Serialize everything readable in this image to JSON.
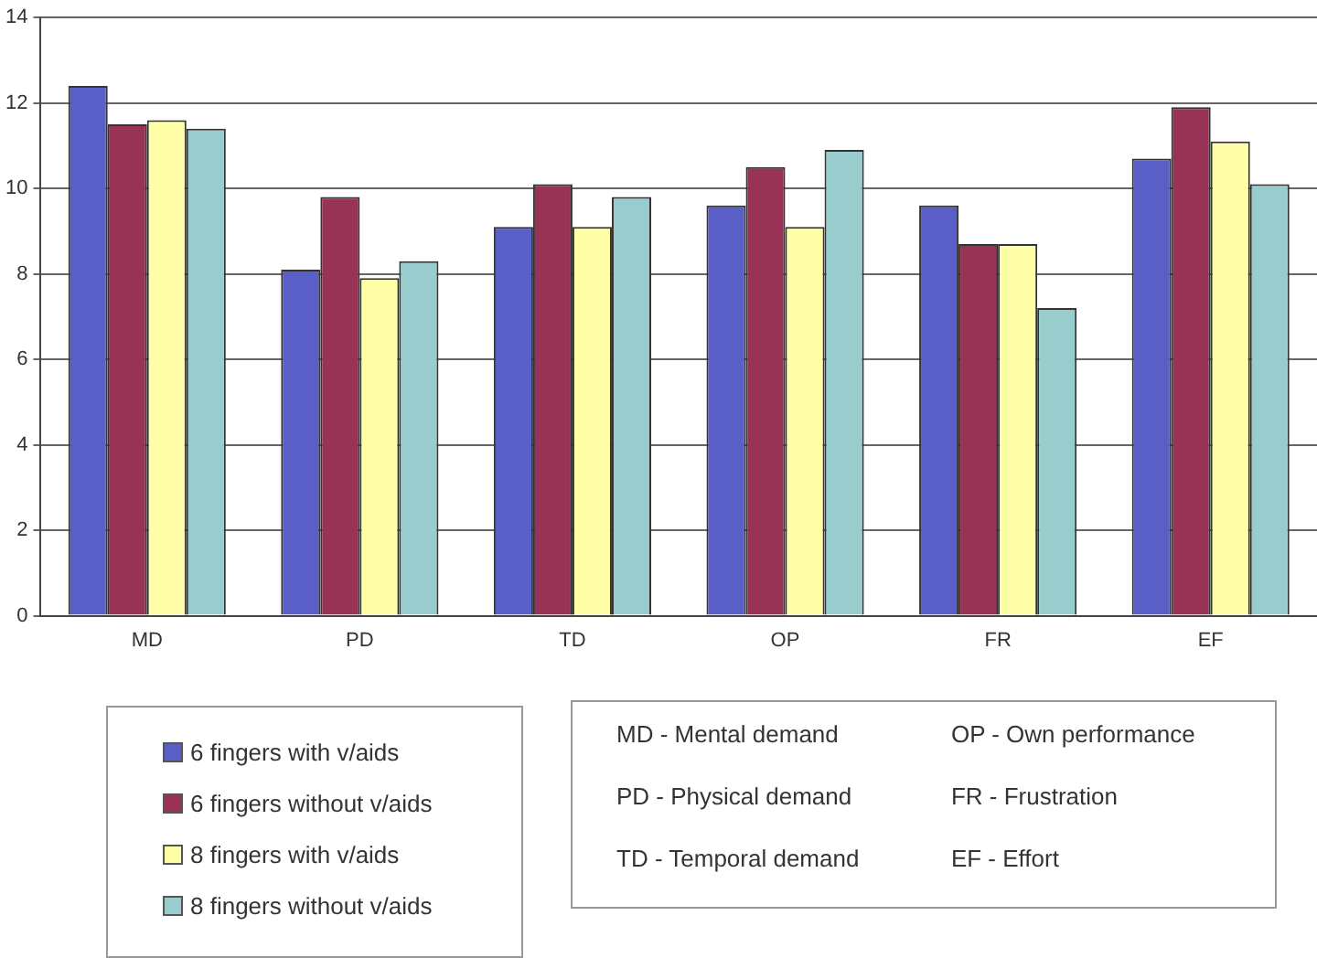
{
  "chart_data": {
    "type": "bar",
    "categories": [
      "MD",
      "PD",
      "TD",
      "OP",
      "FR",
      "EF"
    ],
    "series": [
      {
        "name": "6 fingers with v/aids",
        "color": "#5a5fc8",
        "values": [
          12.4,
          8.1,
          9.1,
          9.6,
          9.6,
          10.7
        ]
      },
      {
        "name": "6 fingers without v/aids",
        "color": "#993355",
        "values": [
          11.5,
          9.8,
          10.1,
          10.5,
          8.7,
          11.9
        ]
      },
      {
        "name": "8 fingers with v/aids",
        "color": "#ffffa8",
        "values": [
          11.6,
          7.9,
          9.1,
          9.1,
          8.7,
          11.1
        ]
      },
      {
        "name": "8 fingers without v/aids",
        "color": "#99cccc",
        "values": [
          11.4,
          8.3,
          9.8,
          10.9,
          7.2,
          10.1
        ]
      }
    ],
    "ylim": [
      0,
      14
    ],
    "yticks": [
      0,
      2,
      4,
      6,
      8,
      10,
      12,
      14
    ],
    "grid": "y",
    "legend": "bottom left",
    "annotations": [
      "MD - Mental demand",
      "PD - Physical demand",
      "TD - Temporal demand",
      "OP - Own performance",
      "FR - Frustration",
      "EF - Effort"
    ]
  }
}
